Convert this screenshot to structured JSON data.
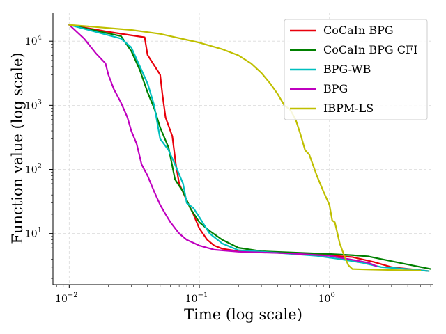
{
  "chart_data": {
    "type": "line",
    "xlabel": "Time (log scale)",
    "ylabel": "Function value (log scale)",
    "xscale": "log",
    "yscale": "log",
    "xlim": [
      0.0075,
      6.3
    ],
    "ylim": [
      1.6,
      28000
    ],
    "grid": true,
    "legend_position": "top-right",
    "x_ticks": [
      {
        "value": 0.01,
        "base": "10",
        "exp": "−2"
      },
      {
        "value": 0.1,
        "base": "10",
        "exp": "−1"
      },
      {
        "value": 1,
        "base": "10",
        "exp": "0"
      }
    ],
    "y_ticks": [
      {
        "value": 10,
        "base": "10",
        "exp": "1"
      },
      {
        "value": 100,
        "base": "10",
        "exp": "2"
      },
      {
        "value": 1000,
        "base": "10",
        "exp": "3"
      },
      {
        "value": 10000,
        "base": "10",
        "exp": "4"
      }
    ],
    "series": [
      {
        "name": "CoCaIn BPG",
        "color": "#e8000b",
        "points": [
          [
            0.01,
            18000
          ],
          [
            0.02,
            14000
          ],
          [
            0.038,
            11500
          ],
          [
            0.04,
            6100
          ],
          [
            0.05,
            3000
          ],
          [
            0.052,
            1500
          ],
          [
            0.055,
            650
          ],
          [
            0.062,
            330
          ],
          [
            0.066,
            120
          ],
          [
            0.07,
            60
          ],
          [
            0.08,
            33
          ],
          [
            0.09,
            20
          ],
          [
            0.1,
            12
          ],
          [
            0.115,
            8
          ],
          [
            0.13,
            6.5
          ],
          [
            0.15,
            5.8
          ],
          [
            0.2,
            5.3
          ],
          [
            0.4,
            5.0
          ],
          [
            0.8,
            4.7
          ],
          [
            1.5,
            4.3
          ],
          [
            2.2,
            3.6
          ],
          [
            3.0,
            3.0
          ],
          [
            5.8,
            2.6
          ]
        ]
      },
      {
        "name": "CoCaIn BPG CFI",
        "color": "#008000",
        "points": [
          [
            0.01,
            18000
          ],
          [
            0.025,
            12000
          ],
          [
            0.03,
            7000
          ],
          [
            0.035,
            3500
          ],
          [
            0.04,
            1600
          ],
          [
            0.045,
            900
          ],
          [
            0.05,
            450
          ],
          [
            0.058,
            220
          ],
          [
            0.065,
            70
          ],
          [
            0.075,
            45
          ],
          [
            0.085,
            25
          ],
          [
            0.1,
            15
          ],
          [
            0.12,
            11
          ],
          [
            0.15,
            8
          ],
          [
            0.2,
            6
          ],
          [
            0.3,
            5.3
          ],
          [
            0.6,
            5.0
          ],
          [
            1.0,
            4.8
          ],
          [
            1.5,
            4.6
          ],
          [
            2.0,
            4.4
          ],
          [
            2.5,
            4.0
          ],
          [
            4.0,
            3.3
          ],
          [
            6.0,
            2.8
          ]
        ]
      },
      {
        "name": "BPG-WB",
        "color": "#00bfbf",
        "points": [
          [
            0.01,
            18000
          ],
          [
            0.025,
            11000
          ],
          [
            0.03,
            8000
          ],
          [
            0.035,
            4000
          ],
          [
            0.04,
            2200
          ],
          [
            0.045,
            1000
          ],
          [
            0.05,
            300
          ],
          [
            0.058,
            200
          ],
          [
            0.065,
            120
          ],
          [
            0.075,
            60
          ],
          [
            0.08,
            30
          ],
          [
            0.09,
            25
          ],
          [
            0.1,
            18
          ],
          [
            0.12,
            10
          ],
          [
            0.15,
            7
          ],
          [
            0.2,
            5.5
          ],
          [
            0.4,
            5.0
          ],
          [
            0.8,
            4.5
          ],
          [
            1.2,
            4.0
          ],
          [
            1.8,
            3.5
          ],
          [
            2.5,
            3.0
          ],
          [
            4.0,
            2.8
          ],
          [
            5.8,
            2.6
          ]
        ]
      },
      {
        "name": "BPG",
        "color": "#bf00bf",
        "points": [
          [
            0.01,
            18000
          ],
          [
            0.013,
            11000
          ],
          [
            0.016,
            6500
          ],
          [
            0.019,
            4500
          ],
          [
            0.02,
            3000
          ],
          [
            0.022,
            1800
          ],
          [
            0.025,
            1100
          ],
          [
            0.028,
            650
          ],
          [
            0.03,
            400
          ],
          [
            0.033,
            250
          ],
          [
            0.036,
            120
          ],
          [
            0.04,
            80
          ],
          [
            0.045,
            45
          ],
          [
            0.05,
            28
          ],
          [
            0.055,
            20
          ],
          [
            0.06,
            15
          ],
          [
            0.07,
            10
          ],
          [
            0.08,
            8
          ],
          [
            0.1,
            6.5
          ],
          [
            0.13,
            5.6
          ],
          [
            0.2,
            5.2
          ],
          [
            0.5,
            4.9
          ],
          [
            1.0,
            4.5
          ],
          [
            1.5,
            3.9
          ],
          [
            2.0,
            3.5
          ],
          [
            2.3,
            3.1
          ]
        ]
      },
      {
        "name": "IBPM-LS",
        "color": "#bfbf00",
        "points": [
          [
            0.01,
            18000
          ],
          [
            0.03,
            15000
          ],
          [
            0.05,
            13000
          ],
          [
            0.08,
            10500
          ],
          [
            0.1,
            9500
          ],
          [
            0.15,
            7500
          ],
          [
            0.2,
            6000
          ],
          [
            0.25,
            4500
          ],
          [
            0.3,
            3200
          ],
          [
            0.35,
            2200
          ],
          [
            0.4,
            1500
          ],
          [
            0.45,
            1000
          ],
          [
            0.5,
            850
          ],
          [
            0.55,
            600
          ],
          [
            0.6,
            350
          ],
          [
            0.65,
            200
          ],
          [
            0.7,
            170
          ],
          [
            0.8,
            80
          ],
          [
            0.9,
            45
          ],
          [
            1.0,
            28
          ],
          [
            1.05,
            16
          ],
          [
            1.1,
            15
          ],
          [
            1.2,
            7
          ],
          [
            1.3,
            4.5
          ],
          [
            1.4,
            3.2
          ],
          [
            1.5,
            2.8
          ],
          [
            2.0,
            2.75
          ],
          [
            3.0,
            2.7
          ],
          [
            5.0,
            2.65
          ]
        ]
      }
    ]
  }
}
